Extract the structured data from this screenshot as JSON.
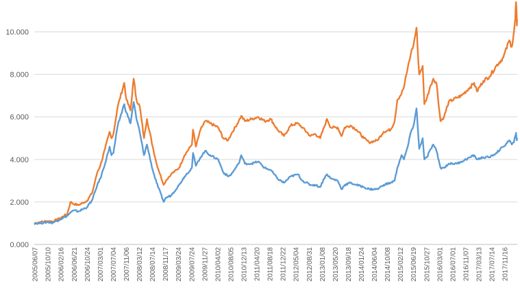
{
  "chart_data": {
    "type": "line",
    "title": "",
    "xlabel": "",
    "ylabel": "",
    "ylim": [
      0,
      11.5
    ],
    "y_ticks": [
      0,
      2,
      4,
      6,
      8,
      10
    ],
    "y_tick_labels": [
      "0.000",
      "2.000",
      "4.000",
      "6.000",
      "8.000",
      "10.000"
    ],
    "grid": "horizontal",
    "legend": "none",
    "x_range": [
      "2005-06-07",
      "2018-01-31"
    ],
    "x_tick_labels": [
      "2005/06/07",
      "2005/10/10",
      "2006/02/16",
      "2006/06/21",
      "2006/10/24",
      "2007/03/01",
      "2007/07/04",
      "2007/11/06",
      "2008/03/12",
      "2008/07/14",
      "2008/11/17",
      "2009/03/24",
      "2009/07/24",
      "2009/11/27",
      "2010/04/02",
      "2010/08/05",
      "2010/12/13",
      "2011/04/20",
      "2011/08/18",
      "2011/12/22",
      "2012/05/04",
      "2012/08/31",
      "2013/01/08",
      "2013/05/20",
      "2013/09/18",
      "2014/01/24",
      "2014/06/04",
      "2014/10/08",
      "2015/02/12",
      "2015/06/19",
      "2015/10/27",
      "2016/03/01",
      "2016/07/01",
      "2016/11/07",
      "2017/03/13",
      "2017/07/14",
      "2017/11/16"
    ],
    "series": [
      {
        "color": "#ed7d31",
        "points": [
          [
            "2005-06-07",
            1.0
          ],
          [
            "2005-08-01",
            1.05
          ],
          [
            "2005-10-10",
            1.1
          ],
          [
            "2005-12-01",
            1.08
          ],
          [
            "2006-02-16",
            1.25
          ],
          [
            "2006-04-20",
            1.45
          ],
          [
            "2006-05-20",
            2.0
          ],
          [
            "2006-06-21",
            1.9
          ],
          [
            "2006-08-01",
            1.85
          ],
          [
            "2006-10-24",
            2.05
          ],
          [
            "2006-12-15",
            2.45
          ],
          [
            "2007-01-31",
            3.4
          ],
          [
            "2007-03-01",
            3.7
          ],
          [
            "2007-04-15",
            4.5
          ],
          [
            "2007-05-29",
            5.3
          ],
          [
            "2007-06-15",
            5.0
          ],
          [
            "2007-07-04",
            5.2
          ],
          [
            "2007-08-15",
            6.5
          ],
          [
            "2007-10-16",
            7.6
          ],
          [
            "2007-11-06",
            6.8
          ],
          [
            "2007-12-15",
            6.3
          ],
          [
            "2008-01-14",
            7.8
          ],
          [
            "2008-02-10",
            6.8
          ],
          [
            "2008-03-12",
            6.5
          ],
          [
            "2008-04-22",
            5.0
          ],
          [
            "2008-05-20",
            5.9
          ],
          [
            "2008-07-14",
            4.6
          ],
          [
            "2008-08-20",
            3.8
          ],
          [
            "2008-10-28",
            2.8
          ],
          [
            "2008-11-17",
            3.0
          ],
          [
            "2009-01-05",
            3.3
          ],
          [
            "2009-03-24",
            3.6
          ],
          [
            "2009-05-15",
            4.2
          ],
          [
            "2009-07-24",
            4.7
          ],
          [
            "2009-08-04",
            5.4
          ],
          [
            "2009-08-31",
            4.6
          ],
          [
            "2009-10-15",
            5.4
          ],
          [
            "2009-11-27",
            5.8
          ],
          [
            "2010-01-15",
            5.7
          ],
          [
            "2010-04-02",
            5.5
          ],
          [
            "2010-05-20",
            5.0
          ],
          [
            "2010-07-05",
            4.9
          ],
          [
            "2010-08-05",
            5.2
          ],
          [
            "2010-10-15",
            5.8
          ],
          [
            "2010-11-08",
            6.05
          ],
          [
            "2010-12-13",
            5.8
          ],
          [
            "2011-02-15",
            5.9
          ],
          [
            "2011-04-20",
            6.0
          ],
          [
            "2011-06-20",
            5.8
          ],
          [
            "2011-08-18",
            5.9
          ],
          [
            "2011-10-20",
            5.4
          ],
          [
            "2011-12-22",
            5.1
          ],
          [
            "2012-02-25",
            5.6
          ],
          [
            "2012-05-04",
            5.7
          ],
          [
            "2012-06-15",
            5.5
          ],
          [
            "2012-08-31",
            5.1
          ],
          [
            "2012-10-15",
            5.2
          ],
          [
            "2012-12-03",
            5.0
          ],
          [
            "2013-01-08",
            5.5
          ],
          [
            "2013-02-06",
            5.9
          ],
          [
            "2013-03-15",
            5.5
          ],
          [
            "2013-05-20",
            5.5
          ],
          [
            "2013-06-25",
            5.1
          ],
          [
            "2013-07-25",
            5.5
          ],
          [
            "2013-09-18",
            5.6
          ],
          [
            "2013-11-15",
            5.4
          ],
          [
            "2014-01-24",
            5.0
          ],
          [
            "2014-03-15",
            4.8
          ],
          [
            "2014-06-04",
            4.9
          ],
          [
            "2014-08-01",
            5.3
          ],
          [
            "2014-10-08",
            5.4
          ],
          [
            "2014-11-15",
            5.8
          ],
          [
            "2014-12-10",
            6.8
          ],
          [
            "2015-01-20",
            7.1
          ],
          [
            "2015-02-12",
            7.4
          ],
          [
            "2015-03-20",
            8.3
          ],
          [
            "2015-04-20",
            9.0
          ],
          [
            "2015-05-15",
            9.4
          ],
          [
            "2015-06-12",
            10.2
          ],
          [
            "2015-06-19",
            9.6
          ],
          [
            "2015-07-08",
            8.0
          ],
          [
            "2015-08-10",
            8.4
          ],
          [
            "2015-08-26",
            6.6
          ],
          [
            "2015-09-20",
            6.9
          ],
          [
            "2015-10-27",
            7.5
          ],
          [
            "2015-11-20",
            7.8
          ],
          [
            "2015-12-20",
            7.6
          ],
          [
            "2016-01-28",
            5.8
          ],
          [
            "2016-03-01",
            6.0
          ],
          [
            "2016-04-15",
            6.7
          ],
          [
            "2016-07-01",
            6.9
          ],
          [
            "2016-08-15",
            7.0
          ],
          [
            "2016-11-07",
            7.4
          ],
          [
            "2016-12-15",
            7.6
          ],
          [
            "2017-01-10",
            7.2
          ],
          [
            "2017-03-13",
            7.7
          ],
          [
            "2017-05-10",
            7.9
          ],
          [
            "2017-07-14",
            8.4
          ],
          [
            "2017-09-20",
            8.8
          ],
          [
            "2017-11-16",
            9.6
          ],
          [
            "2017-12-10",
            9.3
          ],
          [
            "2017-12-30",
            10.0
          ],
          [
            "2018-01-12",
            10.6
          ],
          [
            "2018-01-19",
            11.4
          ],
          [
            "2018-01-24",
            11.0
          ],
          [
            "2018-01-27",
            10.3
          ],
          [
            "2018-01-31",
            10.6
          ]
        ]
      },
      {
        "color": "#5b9bd5",
        "points": [
          [
            "2005-06-07",
            1.0
          ],
          [
            "2005-08-01",
            1.0
          ],
          [
            "2005-10-10",
            1.05
          ],
          [
            "2005-12-01",
            1.02
          ],
          [
            "2006-02-16",
            1.2
          ],
          [
            "2006-04-20",
            1.35
          ],
          [
            "2006-05-20",
            1.5
          ],
          [
            "2006-06-21",
            1.6
          ],
          [
            "2006-08-01",
            1.55
          ],
          [
            "2006-10-24",
            1.75
          ],
          [
            "2006-12-15",
            2.1
          ],
          [
            "2007-01-31",
            2.8
          ],
          [
            "2007-03-01",
            3.1
          ],
          [
            "2007-04-15",
            3.8
          ],
          [
            "2007-05-29",
            4.6
          ],
          [
            "2007-06-15",
            4.2
          ],
          [
            "2007-07-04",
            4.3
          ],
          [
            "2007-08-15",
            5.6
          ],
          [
            "2007-10-16",
            6.6
          ],
          [
            "2007-11-06",
            6.2
          ],
          [
            "2007-12-15",
            5.7
          ],
          [
            "2008-01-14",
            6.7
          ],
          [
            "2008-02-10",
            5.9
          ],
          [
            "2008-03-12",
            5.3
          ],
          [
            "2008-04-22",
            4.2
          ],
          [
            "2008-05-20",
            4.7
          ],
          [
            "2008-07-14",
            3.5
          ],
          [
            "2008-08-20",
            2.9
          ],
          [
            "2008-10-28",
            2.0
          ],
          [
            "2008-11-17",
            2.2
          ],
          [
            "2009-01-05",
            2.3
          ],
          [
            "2009-03-24",
            2.8
          ],
          [
            "2009-05-15",
            3.2
          ],
          [
            "2009-07-24",
            3.6
          ],
          [
            "2009-08-04",
            4.3
          ],
          [
            "2009-08-31",
            3.7
          ],
          [
            "2009-10-15",
            4.1
          ],
          [
            "2009-11-27",
            4.4
          ],
          [
            "2010-01-15",
            4.2
          ],
          [
            "2010-04-02",
            4.0
          ],
          [
            "2010-05-20",
            3.4
          ],
          [
            "2010-07-05",
            3.2
          ],
          [
            "2010-08-05",
            3.3
          ],
          [
            "2010-10-15",
            3.8
          ],
          [
            "2010-11-08",
            4.2
          ],
          [
            "2010-12-13",
            3.8
          ],
          [
            "2011-02-15",
            3.8
          ],
          [
            "2011-04-20",
            3.9
          ],
          [
            "2011-06-20",
            3.6
          ],
          [
            "2011-08-18",
            3.5
          ],
          [
            "2011-10-20",
            3.1
          ],
          [
            "2011-12-22",
            2.9
          ],
          [
            "2012-02-25",
            3.2
          ],
          [
            "2012-05-04",
            3.3
          ],
          [
            "2012-06-15",
            3.0
          ],
          [
            "2012-08-31",
            2.8
          ],
          [
            "2012-10-15",
            2.8
          ],
          [
            "2012-12-03",
            2.7
          ],
          [
            "2013-01-08",
            3.1
          ],
          [
            "2013-02-06",
            3.3
          ],
          [
            "2013-03-15",
            3.1
          ],
          [
            "2013-05-20",
            3.0
          ],
          [
            "2013-06-25",
            2.6
          ],
          [
            "2013-07-25",
            2.8
          ],
          [
            "2013-09-18",
            2.9
          ],
          [
            "2013-11-15",
            2.8
          ],
          [
            "2014-01-24",
            2.7
          ],
          [
            "2014-03-15",
            2.6
          ],
          [
            "2014-06-04",
            2.6
          ],
          [
            "2014-08-01",
            2.8
          ],
          [
            "2014-10-08",
            2.9
          ],
          [
            "2014-11-15",
            3.0
          ],
          [
            "2014-12-10",
            3.6
          ],
          [
            "2015-01-20",
            4.2
          ],
          [
            "2015-02-12",
            4.0
          ],
          [
            "2015-03-20",
            4.6
          ],
          [
            "2015-04-20",
            5.3
          ],
          [
            "2015-05-15",
            5.6
          ],
          [
            "2015-06-12",
            6.4
          ],
          [
            "2015-06-19",
            5.9
          ],
          [
            "2015-07-08",
            4.5
          ],
          [
            "2015-08-10",
            5.0
          ],
          [
            "2015-08-26",
            4.0
          ],
          [
            "2015-09-20",
            4.1
          ],
          [
            "2015-10-27",
            4.5
          ],
          [
            "2015-11-20",
            4.7
          ],
          [
            "2015-12-20",
            4.4
          ],
          [
            "2016-01-28",
            3.6
          ],
          [
            "2016-03-01",
            3.6
          ],
          [
            "2016-04-15",
            3.8
          ],
          [
            "2016-07-01",
            3.8
          ],
          [
            "2016-08-15",
            3.9
          ],
          [
            "2016-11-07",
            4.1
          ],
          [
            "2016-12-15",
            4.2
          ],
          [
            "2017-01-10",
            4.0
          ],
          [
            "2017-03-13",
            4.1
          ],
          [
            "2017-05-10",
            4.1
          ],
          [
            "2017-07-14",
            4.3
          ],
          [
            "2017-09-20",
            4.6
          ],
          [
            "2017-11-16",
            4.9
          ],
          [
            "2017-12-10",
            4.7
          ],
          [
            "2017-12-30",
            4.8
          ],
          [
            "2018-01-12",
            5.1
          ],
          [
            "2018-01-19",
            5.25
          ],
          [
            "2018-01-24",
            5.0
          ],
          [
            "2018-01-27",
            4.9
          ],
          [
            "2018-01-31",
            5.0
          ]
        ]
      }
    ]
  }
}
